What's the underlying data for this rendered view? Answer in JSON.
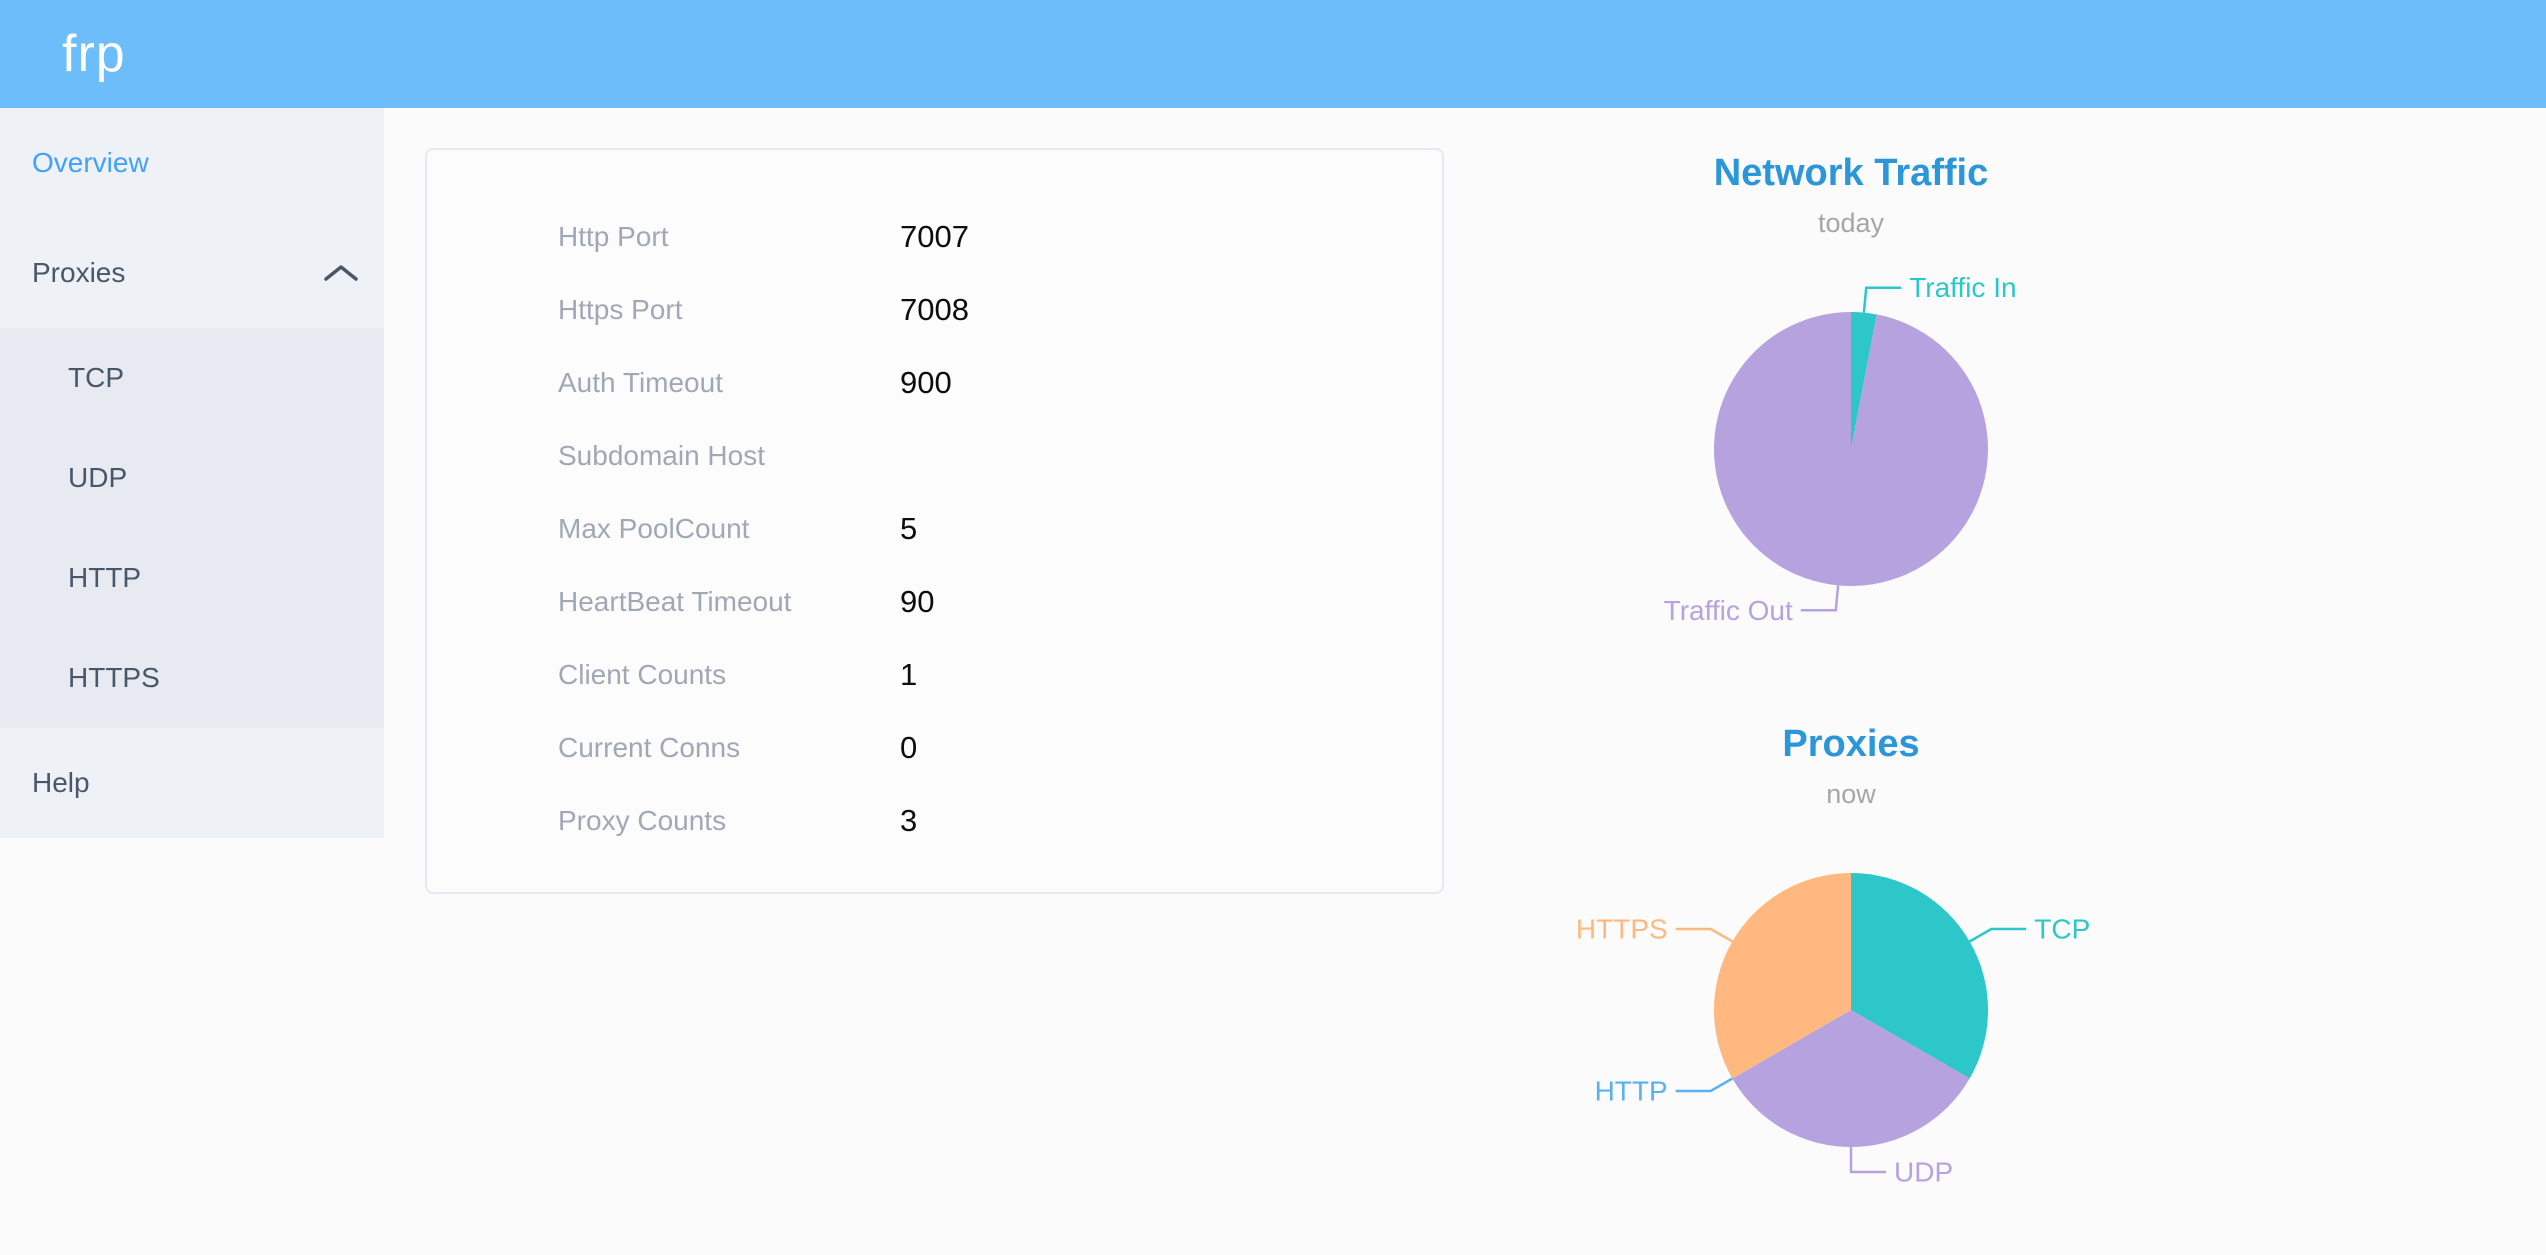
{
  "header": {
    "logo": "frp"
  },
  "sidebar": {
    "items": [
      {
        "id": "overview",
        "label": "Overview",
        "level": 1,
        "active": true
      },
      {
        "id": "proxies",
        "label": "Proxies",
        "level": 1,
        "expanded": true,
        "icon": "chevron-up-icon"
      },
      {
        "id": "tcp",
        "label": "TCP",
        "level": 2
      },
      {
        "id": "udp",
        "label": "UDP",
        "level": 2
      },
      {
        "id": "http",
        "label": "HTTP",
        "level": 2
      },
      {
        "id": "https",
        "label": "HTTPS",
        "level": 2
      },
      {
        "id": "help",
        "label": "Help",
        "level": 1
      }
    ]
  },
  "overview_table": {
    "rows": [
      {
        "label": "Http Port",
        "value": "7007"
      },
      {
        "label": "Https Port",
        "value": "7008"
      },
      {
        "label": "Auth Timeout",
        "value": "900"
      },
      {
        "label": "Subdomain Host",
        "value": ""
      },
      {
        "label": "Max PoolCount",
        "value": "5"
      },
      {
        "label": "HeartBeat Timeout",
        "value": "90"
      },
      {
        "label": "Client Counts",
        "value": "1"
      },
      {
        "label": "Current Conns",
        "value": "0"
      },
      {
        "label": "Proxy Counts",
        "value": "3"
      }
    ]
  },
  "colors": {
    "header_bg": "#6cbdfa",
    "sidebar_bg": "#eef1f6",
    "submenu_bg": "#e7eaf1",
    "menu_text": "#48576a",
    "active_menu_blue": "#42a1fb",
    "chart_title_blue": "#2b96d9",
    "pie_teal": "#2ec7c9",
    "pie_purple": "#b6a2de",
    "pie_blue": "#5ab1ef",
    "pie_orange": "#ffb980"
  },
  "chart_data": [
    {
      "type": "pie",
      "title": "Network Traffic",
      "subtitle": "today",
      "legend_position": "callout-labels",
      "values_unit": "percent of pie, estimated from slice angles",
      "slices": [
        {
          "label": "Traffic In",
          "value": 3,
          "color": "#2ec7c9"
        },
        {
          "label": "Traffic Out",
          "value": 97,
          "color": "#b6a2de"
        }
      ]
    },
    {
      "type": "pie",
      "title": "Proxies",
      "subtitle": "now",
      "legend_position": "callout-labels",
      "values_unit": "proxy counts",
      "slices": [
        {
          "label": "TCP",
          "value": 1,
          "color": "#2ec7c9"
        },
        {
          "label": "UDP",
          "value": 1,
          "color": "#b6a2de"
        },
        {
          "label": "HTTP",
          "value": 0,
          "color": "#5ab1ef"
        },
        {
          "label": "HTTPS",
          "value": 1,
          "color": "#ffb980"
        }
      ]
    }
  ]
}
